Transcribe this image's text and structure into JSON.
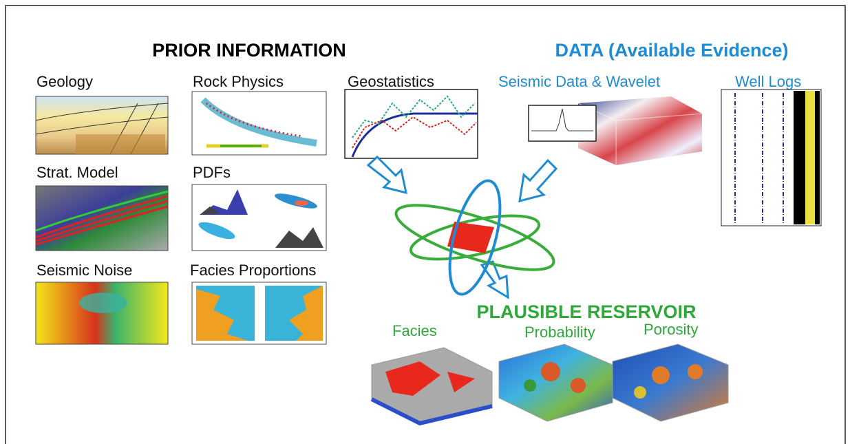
{
  "headers": {
    "prior": "PRIOR INFORMATION",
    "data": "DATA (Available Evidence)",
    "result": "PLAUSIBLE RESERVOIR"
  },
  "prior_panels": [
    "Geology",
    "Rock Physics",
    "Geostatistics",
    "Strat. Model",
    "PDFs",
    "Seismic Noise",
    "Facies Proportions"
  ],
  "data_panels": [
    "Seismic Data & Wavelet",
    "Well Logs"
  ],
  "result_panels": [
    "Facies",
    "Probability",
    "Porosity"
  ]
}
